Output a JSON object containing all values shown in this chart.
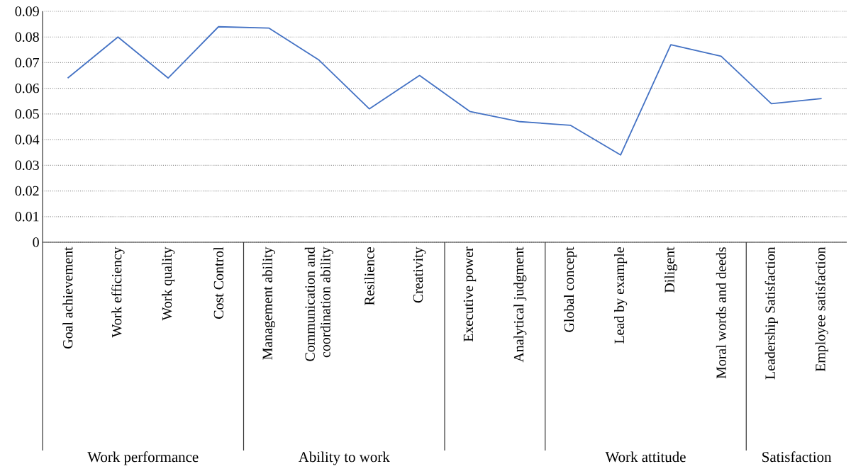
{
  "chart_data": {
    "type": "line",
    "categories": [
      "Goal achievement",
      "Work efficiency",
      "Work quality",
      "Cost Control",
      "Management ability",
      "Communication and coordination ability",
      "Resilience",
      "Creativity",
      "Executive power",
      "Analytical judgment",
      "Global concept",
      "Lead by example",
      "Diligent",
      "Moral words and deeds",
      "Leadership Satisfaction",
      "Employee satisfaction"
    ],
    "values": [
      0.064,
      0.08,
      0.064,
      0.084,
      0.0835,
      0.071,
      0.052,
      0.065,
      0.051,
      0.047,
      0.0456,
      0.034,
      0.077,
      0.0725,
      0.054,
      0.056
    ],
    "color": "#4472c4",
    "ylim": [
      0,
      0.09
    ],
    "yticks": [
      0,
      0.01,
      0.02,
      0.03,
      0.04,
      0.05,
      0.06,
      0.07,
      0.08,
      0.09
    ],
    "grid": "y",
    "annotations": [
      "Work performance",
      "Ability to work",
      "Work attitude",
      "Satisfaction"
    ]
  }
}
